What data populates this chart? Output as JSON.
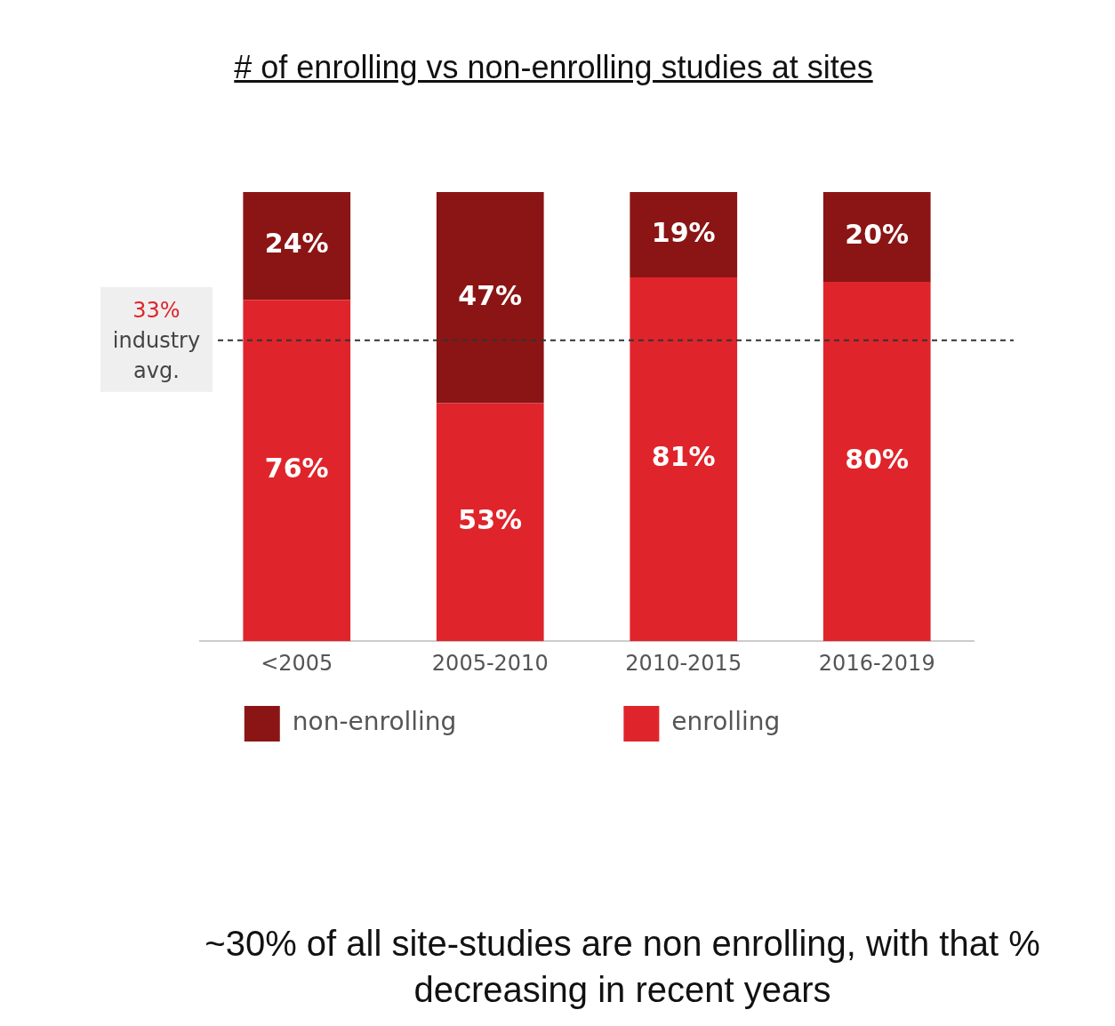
{
  "chart_data": {
    "type": "bar",
    "title": "# of enrolling vs non-enrolling studies at sites",
    "categories": [
      "<2005",
      "2005-2010",
      "2010-2015",
      "2016-2019"
    ],
    "stacked": true,
    "series": [
      {
        "name": "enrolling",
        "color": "#e0242b",
        "values": [
          76,
          53,
          81,
          80
        ],
        "value_labels": [
          "76%",
          "53%",
          "81%",
          "80%"
        ]
      },
      {
        "name": "non-enrolling",
        "color": "#8b1515",
        "values": [
          24,
          47,
          19,
          20
        ],
        "value_labels": [
          "24%",
          "47%",
          "19%",
          "20%"
        ]
      }
    ],
    "ref_lines": [
      {
        "axis": "y",
        "value": 67,
        "color": "#333333",
        "line_style": "dashed"
      }
    ],
    "annotations": [
      "33%",
      "industry avg.",
      "~30% of all site-studies are non enrolling, with that % decreasing in recent years"
    ],
    "legend": "bottom",
    "grid": false
  }
}
